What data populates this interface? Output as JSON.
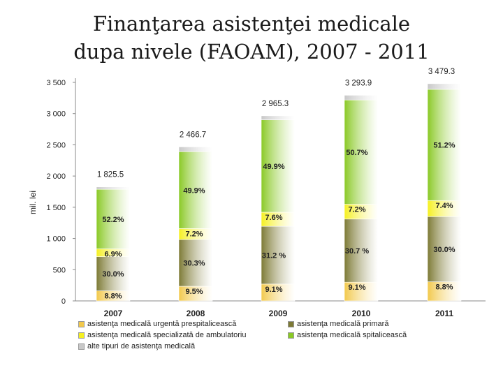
{
  "title_lines": [
    "Finanţarea asistenţei medicale",
    "dupa nivele (FAOAM), 2007 - 2011"
  ],
  "chart_data": {
    "type": "bar",
    "stacked": true,
    "ylabel": "mil. lei",
    "ylim": [
      0,
      3500
    ],
    "y_ticks": [
      0,
      500,
      1000,
      1500,
      2000,
      2500,
      3000,
      3500
    ],
    "y_tick_labels": [
      "0",
      "500",
      "1 000",
      "1 500",
      "2 000",
      "2 500",
      "3 000",
      "3 500"
    ],
    "categories": [
      "2007",
      "2008",
      "2009",
      "2010",
      "2011"
    ],
    "totals": [
      1825.5,
      2466.7,
      2965.3,
      3293.9,
      3479.3
    ],
    "total_labels": [
      "1 825.5",
      "2 466.7",
      "2 965.3",
      "3 293.9",
      "3 479.3"
    ],
    "series": [
      {
        "name": "asistenţa medicală urgentă prespitalicească",
        "color": "#f2c94c",
        "values": [
          160.6,
          234.3,
          269.8,
          299.7,
          306.2
        ],
        "labels": [
          "8.8%",
          "9.5%",
          "9.1%",
          "9.1%",
          "8.8%"
        ]
      },
      {
        "name": "asistenţa medicală primară",
        "color": "#7d7a35",
        "values": [
          547.7,
          747.4,
          925.2,
          1011.2,
          1043.8
        ],
        "labels": [
          "30.0%",
          "30.3%",
          "31.2 %",
          "30.7 %",
          "30.0%"
        ]
      },
      {
        "name": "asistenţa medicală specializată de ambulatoriu",
        "color": "#f5f021",
        "values": [
          126.0,
          177.6,
          225.4,
          237.2,
          257.5
        ],
        "labels": [
          "6.9%",
          "7.2%",
          "7.6%",
          "7.2%",
          "7.4%"
        ]
      },
      {
        "name": "asistenţa medicală spitalicească",
        "color": "#8ac926",
        "values": [
          952.9,
          1230.9,
          1479.7,
          1670.0,
          1781.4
        ],
        "labels": [
          "52.2%",
          "49.9%",
          "49.9%",
          "50.7%",
          "51.2%"
        ]
      },
      {
        "name": "alte tipuri de asistenţa medicală",
        "color": "#c8c8c8",
        "values": [
          38.3,
          76.5,
          65.2,
          75.8,
          90.4
        ],
        "labels": [
          "",
          "",
          "",
          "",
          ""
        ]
      }
    ],
    "legend_position": "bottom",
    "grid": false
  }
}
